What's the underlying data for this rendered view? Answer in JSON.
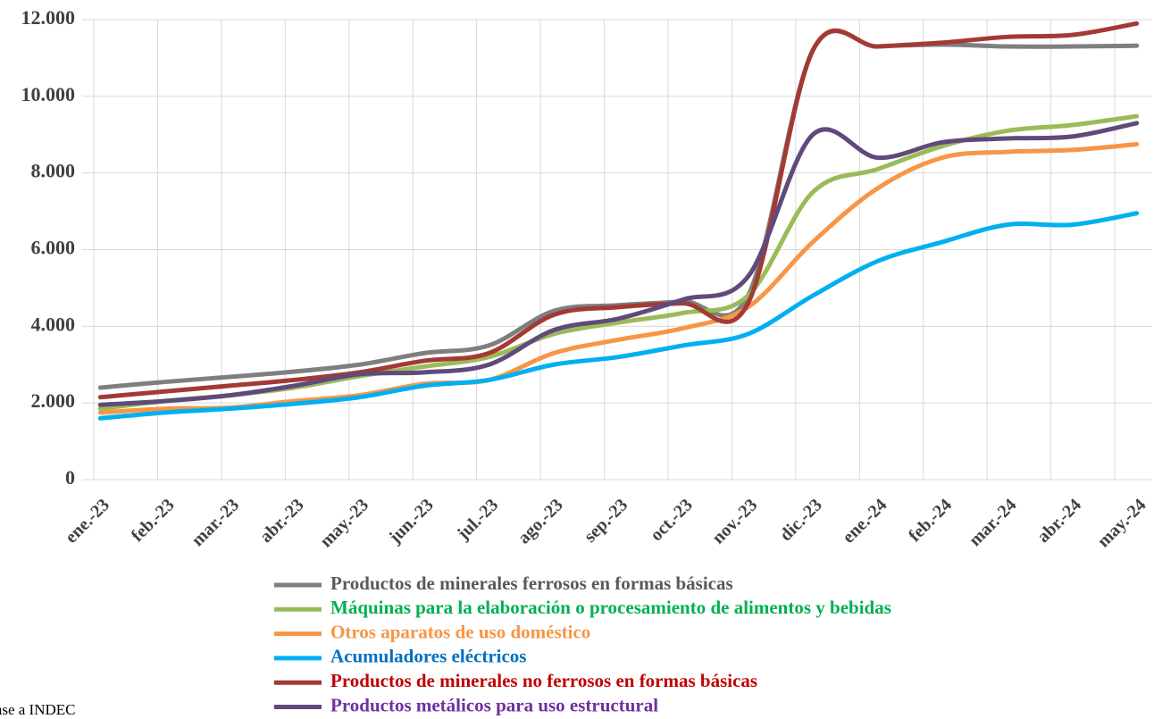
{
  "chart_data": {
    "type": "line",
    "categories": [
      "ene.-23",
      "feb.-23",
      "mar.-23",
      "abr.-23",
      "may.-23",
      "jun.-23",
      "jul.-23",
      "ago.-23",
      "sep.-23",
      "oct.-23",
      "nov.-23",
      "dic.-23",
      "ene.-24",
      "feb.-24",
      "mar.-24",
      "abr.-24",
      "may.-24"
    ],
    "ylim": [
      0,
      12000
    ],
    "yticks": [
      {
        "value": 0,
        "label": "0"
      },
      {
        "value": 2000,
        "label": "2.000"
      },
      {
        "value": 4000,
        "label": "4.000"
      },
      {
        "value": 6000,
        "label": "6.000"
      },
      {
        "value": 8000,
        "label": "8.000"
      },
      {
        "value": 10000,
        "label": "10.000"
      },
      {
        "value": 12000,
        "label": "12.000"
      }
    ],
    "grid": true,
    "legend": "bottom",
    "source": "en base a INDEC",
    "series": [
      {
        "name": "Productos de minerales ferrosos en formas básicas",
        "color": "#7f7f7f",
        "label_color": "#595959",
        "values": [
          2400,
          2550,
          2680,
          2820,
          3000,
          3300,
          3500,
          4400,
          4550,
          4650,
          4800,
          11200,
          11300,
          11350,
          11300,
          11300,
          11320
        ]
      },
      {
        "name": "Máquinas para la elaboración o procesamiento de alimentos y bebidas",
        "color": "#9bbb59",
        "label_color": "#00b050",
        "values": [
          1850,
          2050,
          2200,
          2400,
          2700,
          2950,
          3200,
          3800,
          4100,
          4350,
          4800,
          7500,
          8100,
          8700,
          9100,
          9250,
          9480
        ]
      },
      {
        "name": "Otros aparatos de uso doméstico",
        "color": "#f79646",
        "label_color": "#f79646",
        "values": [
          1750,
          1850,
          1880,
          2050,
          2200,
          2500,
          2600,
          3300,
          3650,
          3950,
          4500,
          6200,
          7600,
          8400,
          8550,
          8600,
          8750
        ]
      },
      {
        "name": "Acumuladores eléctricos",
        "color": "#00b0f0",
        "label_color": "#0070c0",
        "values": [
          1600,
          1750,
          1850,
          1980,
          2150,
          2450,
          2600,
          3000,
          3200,
          3500,
          3800,
          4800,
          5700,
          6200,
          6650,
          6650,
          6950
        ]
      },
      {
        "name": "Productos de minerales no ferrosos en formas básicas",
        "color": "#a33a33",
        "label_color": "#c00000",
        "values": [
          2150,
          2300,
          2450,
          2600,
          2800,
          3100,
          3300,
          4300,
          4500,
          4600,
          4600,
          11200,
          11300,
          11400,
          11550,
          11600,
          11900
        ]
      },
      {
        "name": "Productos metálicos para uso estructural",
        "color": "#604a7b",
        "label_color": "#7030a0",
        "values": [
          1950,
          2050,
          2200,
          2450,
          2750,
          2800,
          3000,
          3900,
          4200,
          4700,
          5300,
          9000,
          8400,
          8800,
          8900,
          8950,
          9300
        ]
      }
    ]
  }
}
